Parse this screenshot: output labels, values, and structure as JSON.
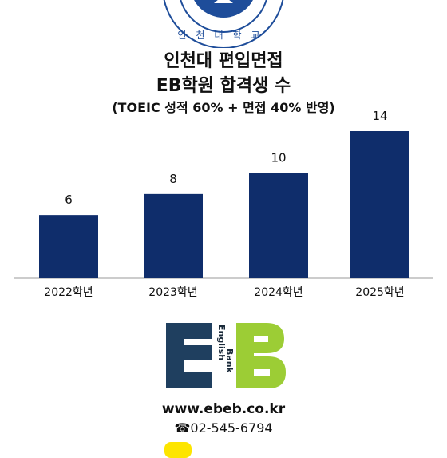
{
  "header": {
    "seal_text": "인천대학교",
    "title_line1": "인천대 편입면접",
    "title_line2": "EB학원 합격생 수",
    "subtitle": "(TOEIC 성적 60% + 면접 40% 반영)"
  },
  "chart_data": {
    "type": "bar",
    "categories": [
      "2022학년",
      "2023학년",
      "2024학년",
      "2025학년"
    ],
    "values": [
      6,
      8,
      10,
      14
    ],
    "data_labels": [
      "6",
      "8",
      "10",
      "14"
    ],
    "ylim": [
      0,
      14
    ],
    "grid": false,
    "bar_color": "#0f2d6b"
  },
  "logo": {
    "text_line1": "English",
    "text_line2": "Bank",
    "colors": {
      "navy": "#1f3f5f",
      "green": "#9ccd35"
    }
  },
  "contact": {
    "website": "www.ebeb.co.kr",
    "phone": "☎02-545-6794"
  }
}
